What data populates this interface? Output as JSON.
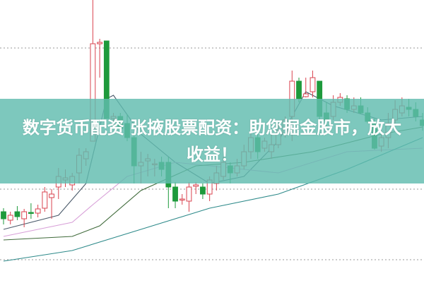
{
  "banner": {
    "line1": "数字货币配资 张掖股票配资：助您掘金股市，放大",
    "line2": "收益！"
  },
  "colors": {
    "up": "#d9434f",
    "down": "#1e9a3c",
    "banner": "#60bcae",
    "grid": "#999999"
  },
  "chart_data": {
    "type": "candlestick",
    "title": "",
    "xlabel": "",
    "ylabel": "",
    "ylim": [
      0,
      400
    ],
    "grid": true,
    "grid_levels": [
      332,
      132,
      32
    ],
    "candles": [
      [
        100,
        90,
        105,
        82
      ],
      [
        88,
        95,
        100,
        82
      ],
      [
        100,
        93,
        108,
        88
      ],
      [
        90,
        100,
        104,
        78
      ],
      [
        99,
        98,
        112,
        90
      ],
      [
        98,
        104,
        110,
        92
      ],
      [
        105,
        128,
        135,
        100
      ],
      [
        120,
        125,
        132,
        90
      ],
      [
        135,
        150,
        162,
        118
      ],
      [
        145,
        148,
        160,
        135
      ],
      [
        138,
        150,
        155,
        130
      ],
      [
        155,
        180,
        190,
        140
      ],
      [
        175,
        185,
        190,
        165
      ],
      [
        200,
        338,
        400,
        200
      ],
      [
        338,
        340,
        345,
        290
      ],
      [
        342,
        232,
        342,
        232
      ],
      [
        232,
        235,
        240,
        220
      ],
      [
        235,
        218,
        240,
        210
      ],
      [
        225,
        205,
        238,
        200
      ],
      [
        205,
        165,
        210,
        140
      ],
      [
        165,
        170,
        185,
        140
      ],
      [
        172,
        175,
        182,
        150
      ],
      [
        168,
        168,
        175,
        150
      ],
      [
        170,
        160,
        178,
        150
      ],
      [
        170,
        135,
        178,
        105
      ],
      [
        135,
        115,
        142,
        105
      ],
      [
        118,
        118,
        125,
        110
      ],
      [
        115,
        135,
        142,
        100
      ],
      [
        136,
        138,
        142,
        125
      ],
      [
        135,
        125,
        140,
        118
      ],
      [
        125,
        145,
        150,
        115
      ],
      [
        140,
        155,
        165,
        130
      ],
      [
        150,
        170,
        178,
        145
      ],
      [
        165,
        155,
        170,
        140
      ],
      [
        155,
        165,
        175,
        150
      ],
      [
        165,
        185,
        195,
        160
      ],
      [
        185,
        205,
        215,
        175
      ],
      [
        205,
        185,
        210,
        175
      ],
      [
        190,
        200,
        205,
        185
      ],
      [
        185,
        195,
        210,
        175
      ],
      [
        195,
        215,
        225,
        190
      ],
      [
        210,
        230,
        235,
        205
      ],
      [
        235,
        285,
        300,
        200
      ],
      [
        285,
        260,
        290,
        255
      ],
      [
        263,
        267,
        290,
        262
      ],
      [
        270,
        290,
        300,
        262
      ],
      [
        285,
        235,
        285,
        210
      ],
      [
        240,
        230,
        255,
        220
      ],
      [
        235,
        255,
        265,
        230
      ],
      [
        255,
        262,
        268,
        250
      ],
      [
        260,
        245,
        265,
        240
      ],
      [
        245,
        250,
        262,
        240
      ],
      [
        250,
        240,
        262,
        238
      ],
      [
        240,
        228,
        248,
        225
      ],
      [
        225,
        190,
        232,
        188
      ],
      [
        193,
        205,
        215,
        185
      ],
      [
        205,
        225,
        240,
        190
      ],
      [
        230,
        245,
        258,
        225
      ],
      [
        240,
        250,
        262,
        235
      ],
      [
        248,
        245,
        260,
        235
      ],
      [
        245,
        235,
        255,
        228
      ],
      [
        230,
        222,
        240,
        215
      ]
    ],
    "series": [
      {
        "color": "#4a5a6a",
        "points": [
          [
            0,
            75
          ],
          [
            8,
            95
          ],
          [
            12,
            140
          ],
          [
            15,
            260
          ],
          [
            16,
            265
          ],
          [
            20,
            210
          ],
          [
            25,
            170
          ],
          [
            30,
            140
          ],
          [
            35,
            150
          ],
          [
            40,
            200
          ],
          [
            44,
            270
          ],
          [
            48,
            250
          ],
          [
            55,
            230
          ],
          [
            61,
            235
          ]
        ]
      },
      {
        "color": "#d8a0d8",
        "points": [
          [
            0,
            65
          ],
          [
            10,
            85
          ],
          [
            13,
            110
          ],
          [
            18,
            150
          ],
          [
            25,
            170
          ],
          [
            30,
            165
          ],
          [
            40,
            155
          ],
          [
            50,
            185
          ],
          [
            61,
            190
          ]
        ]
      },
      {
        "color": "#3f6a3a",
        "points": [
          [
            0,
            60
          ],
          [
            10,
            65
          ],
          [
            14,
            80
          ],
          [
            20,
            130
          ],
          [
            28,
            165
          ],
          [
            35,
            170
          ],
          [
            45,
            185
          ],
          [
            55,
            210
          ],
          [
            61,
            220
          ]
        ]
      },
      {
        "color": "#2e8a8a",
        "points": [
          [
            0,
            30
          ],
          [
            10,
            45
          ],
          [
            20,
            75
          ],
          [
            30,
            105
          ],
          [
            40,
            125
          ],
          [
            50,
            160
          ],
          [
            61,
            205
          ]
        ]
      }
    ]
  }
}
